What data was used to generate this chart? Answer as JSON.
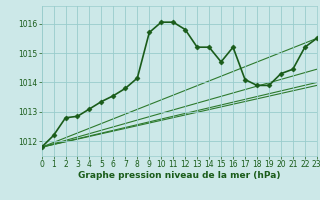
{
  "title": "Graphe pression niveau de la mer (hPa)",
  "bg_color": "#cce8e8",
  "grid_color": "#99cccc",
  "line_color_main": "#1a5c1a",
  "xlim": [
    0,
    23
  ],
  "ylim": [
    1011.5,
    1016.6
  ],
  "yticks": [
    1012,
    1013,
    1014,
    1015,
    1016
  ],
  "xticks": [
    0,
    1,
    2,
    3,
    4,
    5,
    6,
    7,
    8,
    9,
    10,
    11,
    12,
    13,
    14,
    15,
    16,
    17,
    18,
    19,
    20,
    21,
    22,
    23
  ],
  "main_series_x": [
    0,
    1,
    2,
    3,
    4,
    5,
    6,
    7,
    8,
    9,
    10,
    11,
    12,
    13,
    14,
    15,
    16,
    17,
    18,
    19,
    20,
    21,
    22,
    23
  ],
  "main_series_y": [
    1011.8,
    1012.2,
    1012.8,
    1012.85,
    1013.1,
    1013.35,
    1013.55,
    1013.8,
    1014.15,
    1015.7,
    1016.05,
    1016.05,
    1015.8,
    1015.2,
    1015.2,
    1014.7,
    1015.2,
    1014.1,
    1013.9,
    1013.9,
    1014.3,
    1014.45,
    1015.2,
    1015.5
  ],
  "fan_lines": [
    {
      "x0": 0,
      "y0": 1011.8,
      "x1": 23,
      "y1": 1015.5
    },
    {
      "x0": 0,
      "y0": 1011.8,
      "x1": 23,
      "y1": 1014.45
    },
    {
      "x0": 0,
      "y0": 1011.8,
      "x1": 23,
      "y1": 1014.0
    },
    {
      "x0": 0,
      "y0": 1011.8,
      "x1": 23,
      "y1": 1013.9
    }
  ],
  "fan_color": "#2d7a2d",
  "main_color": "#1a5c1a",
  "main_linewidth": 1.2,
  "main_markersize": 2.5,
  "fan_linewidth": 0.8,
  "title_fontsize": 6.5,
  "tick_fontsize": 5.5,
  "xlabel_fontsize": 6.5
}
